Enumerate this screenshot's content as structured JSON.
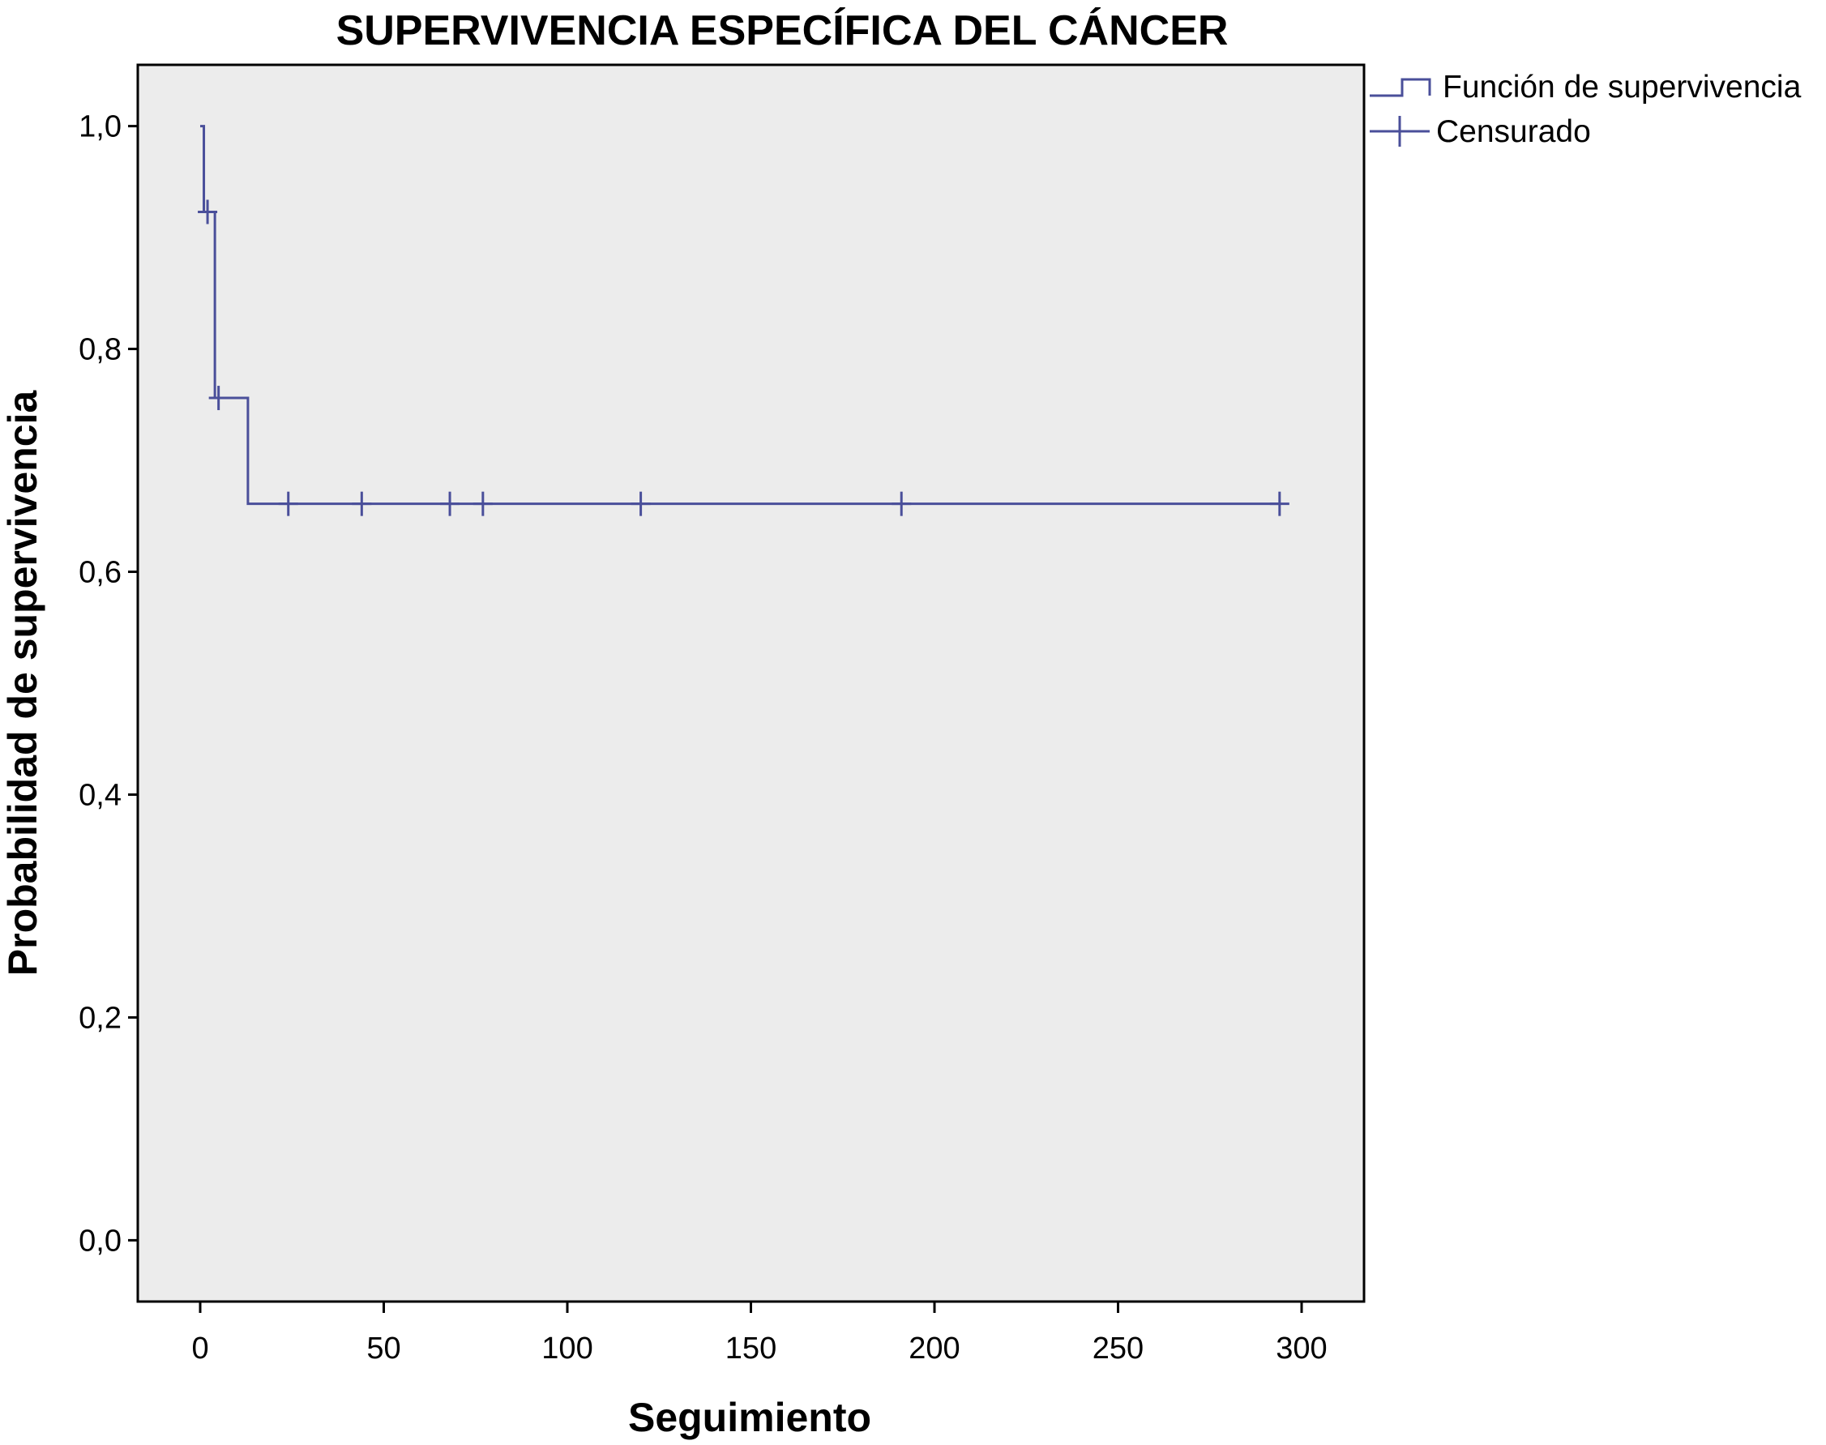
{
  "colors": {
    "series": "#4a4f9a",
    "plot_background": "#ececec",
    "frame": "#000000"
  },
  "chart_data": {
    "type": "line",
    "subtype": "kaplan-meier-step",
    "title": "SUPERVIVENCIA ESPECÍFICA DEL CÁNCER",
    "xlabel": "Seguimiento",
    "ylabel": "Probabilidad de supervivencia",
    "xlim": [
      -17,
      317
    ],
    "ylim": [
      -0.055,
      1.055
    ],
    "grid": false,
    "legend_position": "outside top-right",
    "x_ticks": [
      0,
      50,
      100,
      150,
      200,
      250,
      300
    ],
    "x_tick_labels": [
      "0",
      "50",
      "100",
      "150",
      "200",
      "250",
      "300"
    ],
    "y_ticks": [
      0.0,
      0.2,
      0.4,
      0.6,
      0.8,
      1.0
    ],
    "y_tick_labels": [
      "0,0",
      "0,2",
      "0,4",
      "0,6",
      "0,8",
      "1,0"
    ],
    "legend": [
      {
        "label": "Función de supervivencia",
        "symbol": "step-line"
      },
      {
        "label": "Censurado",
        "symbol": "cross"
      }
    ],
    "series": [
      {
        "name": "Función de supervivencia",
        "step_points": [
          {
            "x": 0,
            "y": 1.0
          },
          {
            "x": 1,
            "y": 1.0
          },
          {
            "x": 1,
            "y": 0.923
          },
          {
            "x": 4,
            "y": 0.923
          },
          {
            "x": 4,
            "y": 0.756
          },
          {
            "x": 13,
            "y": 0.756
          },
          {
            "x": 13,
            "y": 0.661
          },
          {
            "x": 294,
            "y": 0.661
          }
        ]
      },
      {
        "name": "Censurado",
        "points": [
          {
            "x": 2,
            "y": 0.923
          },
          {
            "x": 5,
            "y": 0.756
          },
          {
            "x": 24,
            "y": 0.661
          },
          {
            "x": 44,
            "y": 0.661
          },
          {
            "x": 68,
            "y": 0.661
          },
          {
            "x": 77,
            "y": 0.661
          },
          {
            "x": 120,
            "y": 0.661
          },
          {
            "x": 191,
            "y": 0.661
          },
          {
            "x": 294,
            "y": 0.661
          }
        ]
      }
    ]
  }
}
